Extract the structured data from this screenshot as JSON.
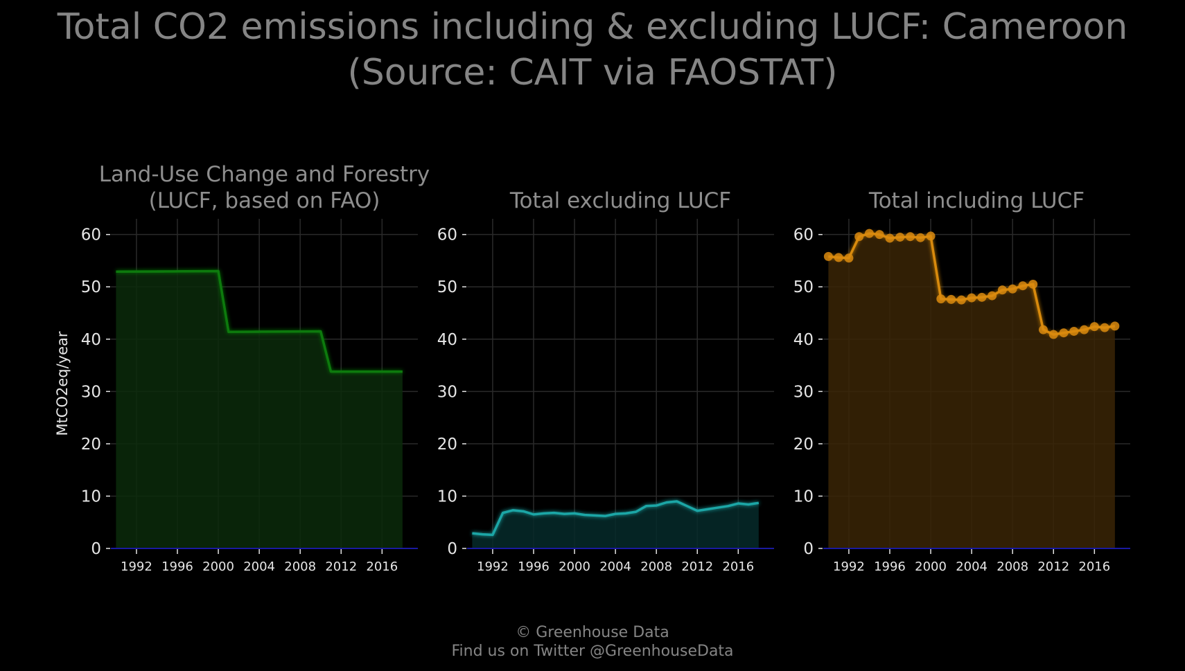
{
  "title_line1": "Total CO2 emissions including & excluding LUCF: Cameroon",
  "title_line2": "(Source: CAIT via FAOSTAT)",
  "footer_line1": "© Greenhouse Data",
  "footer_line2": "Find us on Twitter @GreenhouseData",
  "colors": {
    "background": "#000000",
    "grid": "#2a2a2a",
    "text": "#8a8a8a",
    "tick_text": "#e6e6e6",
    "zero_line": "#1a1aa0",
    "lucf_line": "#0f7a0f",
    "lucf_fill": "#0a2a0a",
    "excl_line": "#1aa6a6",
    "excl_fill": "#062a2a",
    "incl_line": "#d98a0f",
    "incl_fill": "#3a2406"
  },
  "chart_data": [
    {
      "type": "area",
      "title": "Land-Use Change and Forestry\n(LUCF, based on FAO)",
      "ylabel": "MtCO2eq/year",
      "xlabel": "",
      "xlim": [
        1989.5,
        2019.5
      ],
      "ylim": [
        0,
        63
      ],
      "xticks": [
        1992,
        1996,
        2000,
        2004,
        2008,
        2012,
        2016
      ],
      "yticks": [
        0,
        10,
        20,
        30,
        40,
        50,
        60
      ],
      "grid": true,
      "markers": false,
      "series": [
        {
          "x": [
            1990,
            2000,
            2001,
            2010,
            2011,
            2018
          ],
          "values": [
            52.9,
            53.0,
            41.4,
            41.5,
            33.8,
            33.8
          ]
        }
      ]
    },
    {
      "type": "area",
      "title": "Total excluding LUCF",
      "xlabel": "",
      "ylabel": "",
      "xlim": [
        1989.5,
        2019.5
      ],
      "ylim": [
        0,
        63
      ],
      "xticks": [
        1992,
        1996,
        2000,
        2004,
        2008,
        2012,
        2016
      ],
      "yticks": [
        0,
        10,
        20,
        30,
        40,
        50,
        60
      ],
      "grid": true,
      "markers": false,
      "series": [
        {
          "x": [
            1990,
            1991,
            1992,
            1993,
            1994,
            1995,
            1996,
            1997,
            1998,
            1999,
            2000,
            2001,
            2002,
            2003,
            2004,
            2005,
            2006,
            2007,
            2008,
            2009,
            2010,
            2011,
            2012,
            2013,
            2014,
            2015,
            2016,
            2017,
            2018
          ],
          "values": [
            2.9,
            2.7,
            2.6,
            6.8,
            7.3,
            7.1,
            6.5,
            6.7,
            6.8,
            6.6,
            6.7,
            6.4,
            6.3,
            6.2,
            6.6,
            6.7,
            7.0,
            8.1,
            8.2,
            8.8,
            9.0,
            8.1,
            7.2,
            7.5,
            7.8,
            8.1,
            8.6,
            8.4,
            8.7
          ]
        }
      ]
    },
    {
      "type": "area",
      "title": "Total including LUCF",
      "xlabel": "",
      "ylabel": "",
      "xlim": [
        1989.5,
        2019.5
      ],
      "ylim": [
        0,
        63
      ],
      "xticks": [
        1992,
        1996,
        2000,
        2004,
        2008,
        2012,
        2016
      ],
      "yticks": [
        0,
        10,
        20,
        30,
        40,
        50,
        60
      ],
      "grid": true,
      "markers": true,
      "series": [
        {
          "x": [
            1990,
            1991,
            1992,
            1993,
            1994,
            1995,
            1996,
            1997,
            1998,
            1999,
            2000,
            2001,
            2002,
            2003,
            2004,
            2005,
            2006,
            2007,
            2008,
            2009,
            2010,
            2011,
            2012,
            2013,
            2014,
            2015,
            2016,
            2017,
            2018
          ],
          "values": [
            55.8,
            55.6,
            55.5,
            59.6,
            60.2,
            60.0,
            59.3,
            59.5,
            59.6,
            59.4,
            59.7,
            47.7,
            47.6,
            47.5,
            47.9,
            48.0,
            48.3,
            49.4,
            49.6,
            50.2,
            50.5,
            41.8,
            40.9,
            41.2,
            41.5,
            41.8,
            42.4,
            42.2,
            42.5
          ]
        }
      ]
    }
  ]
}
